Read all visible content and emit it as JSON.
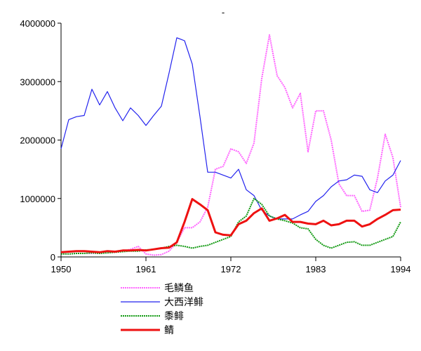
{
  "chart_data": {
    "type": "line",
    "title": "-",
    "xlabel": "",
    "ylabel": "",
    "xlim": [
      1950,
      1994
    ],
    "ylim": [
      0,
      4000000
    ],
    "x_ticks": [
      1950,
      1961,
      1972,
      1983,
      1994
    ],
    "y_ticks": [
      0,
      1000000,
      2000000,
      3000000,
      4000000
    ],
    "grid": false,
    "legend_position": "bottom",
    "x": [
      1950,
      1951,
      1952,
      1953,
      1954,
      1955,
      1956,
      1957,
      1958,
      1959,
      1960,
      1961,
      1962,
      1963,
      1964,
      1965,
      1966,
      1967,
      1968,
      1969,
      1970,
      1971,
      1972,
      1973,
      1974,
      1975,
      1976,
      1977,
      1978,
      1979,
      1980,
      1981,
      1982,
      1983,
      1984,
      1985,
      1986,
      1987,
      1988,
      1989,
      1990,
      1991,
      1992,
      1993,
      1994
    ],
    "series": [
      {
        "name": "毛鳞鱼",
        "color": "#ff66ff",
        "style": "dotted",
        "values": [
          50000,
          50000,
          60000,
          60000,
          60000,
          70000,
          70000,
          80000,
          100000,
          130000,
          180000,
          50000,
          30000,
          40000,
          100000,
          250000,
          500000,
          500000,
          600000,
          850000,
          1500000,
          1550000,
          1850000,
          1800000,
          1600000,
          1950000,
          3050000,
          3800000,
          3100000,
          2900000,
          2550000,
          2800000,
          1800000,
          2500000,
          2500000,
          2000000,
          1250000,
          1050000,
          1050000,
          780000,
          800000,
          1350000,
          2100000,
          1700000,
          850000
        ]
      },
      {
        "name": "大西洋鲱",
        "color": "#2222ee",
        "style": "solid",
        "values": [
          1850000,
          2350000,
          2400000,
          2420000,
          2870000,
          2600000,
          2830000,
          2550000,
          2330000,
          2550000,
          2420000,
          2250000,
          2420000,
          2580000,
          3150000,
          3750000,
          3700000,
          3300000,
          2400000,
          1450000,
          1450000,
          1400000,
          1350000,
          1500000,
          1150000,
          1050000,
          800000,
          700000,
          650000,
          650000,
          650000,
          720000,
          780000,
          950000,
          1050000,
          1200000,
          1300000,
          1320000,
          1400000,
          1380000,
          1150000,
          1100000,
          1300000,
          1400000,
          1650000
        ]
      },
      {
        "name": "黍鲱",
        "color": "#119911",
        "style": "dotted",
        "values": [
          50000,
          50000,
          60000,
          60000,
          70000,
          60000,
          70000,
          80000,
          90000,
          100000,
          100000,
          120000,
          130000,
          150000,
          180000,
          200000,
          180000,
          150000,
          180000,
          200000,
          250000,
          300000,
          350000,
          600000,
          700000,
          1000000,
          900000,
          700000,
          650000,
          620000,
          580000,
          500000,
          480000,
          300000,
          200000,
          150000,
          200000,
          250000,
          260000,
          200000,
          200000,
          250000,
          300000,
          350000,
          600000
        ]
      },
      {
        "name": "鲭",
        "color": "#ee1111",
        "style": "solid-thick",
        "values": [
          80000,
          90000,
          100000,
          100000,
          90000,
          80000,
          100000,
          90000,
          110000,
          110000,
          120000,
          110000,
          130000,
          150000,
          160000,
          250000,
          600000,
          990000,
          900000,
          800000,
          420000,
          380000,
          370000,
          560000,
          620000,
          750000,
          830000,
          620000,
          660000,
          720000,
          600000,
          600000,
          570000,
          560000,
          620000,
          540000,
          560000,
          620000,
          620000,
          520000,
          560000,
          650000,
          720000,
          800000,
          810000
        ]
      }
    ]
  }
}
